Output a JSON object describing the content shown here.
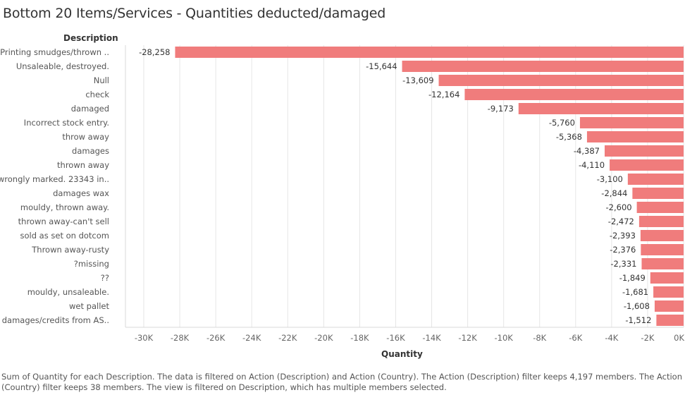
{
  "title": "Bottom 20 Items/Services -  Quantities deducted/damaged",
  "footer": "Sum of Quantity for each Description. The data is filtered on Action (Description) and Action (Country). The Action (Description) filter keeps 4,197 members. The Action (Country) filter keeps 38 members. The view is filtered on Description, which has multiple members selected.",
  "colors": {
    "bar": "#f07c7c",
    "grid": "#e6e6e6"
  },
  "chart_data": {
    "type": "bar",
    "orientation": "horizontal",
    "row_header": "Description",
    "xlabel": "Quantity",
    "xlim": [
      -30000,
      0
    ],
    "x_ticks": [
      -30000,
      -28000,
      -26000,
      -24000,
      -22000,
      -20000,
      -18000,
      -16000,
      -14000,
      -12000,
      -10000,
      -8000,
      -6000,
      -4000,
      -2000,
      0
    ],
    "x_tick_labels": [
      "-30K",
      "-28K",
      "-26K",
      "-24K",
      "-22K",
      "-20K",
      "-18K",
      "-16K",
      "-14K",
      "-12K",
      "-10K",
      "-8K",
      "-6K",
      "-4K",
      "-2K",
      "0K"
    ],
    "categories": [
      "Printing smudges/thrown ..",
      "Unsaleable, destroyed.",
      "Null",
      "check",
      "damaged",
      "Incorrect stock entry.",
      "throw away",
      "damages",
      "thrown away",
      "wrongly marked. 23343 in..",
      "damages wax",
      "mouldy, thrown away.",
      "thrown away-can't sell",
      "sold as set on dotcom",
      "Thrown away-rusty",
      "?missing",
      "??",
      "mouldy, unsaleable.",
      "wet pallet",
      "damages/credits from AS.."
    ],
    "values": [
      -28258,
      -15644,
      -13609,
      -12164,
      -9173,
      -5760,
      -5368,
      -4387,
      -4110,
      -3100,
      -2844,
      -2600,
      -2472,
      -2393,
      -2376,
      -2331,
      -1849,
      -1681,
      -1608,
      -1512
    ],
    "value_labels": [
      "-28,258",
      "-15,644",
      "-13,609",
      "-12,164",
      "-9,173",
      "-5,760",
      "-5,368",
      "-4,387",
      "-4,110",
      "-3,100",
      "-2,844",
      "-2,600",
      "-2,472",
      "-2,393",
      "-2,376",
      "-2,331",
      "-1,849",
      "-1,681",
      "-1,608",
      "-1,512"
    ]
  }
}
